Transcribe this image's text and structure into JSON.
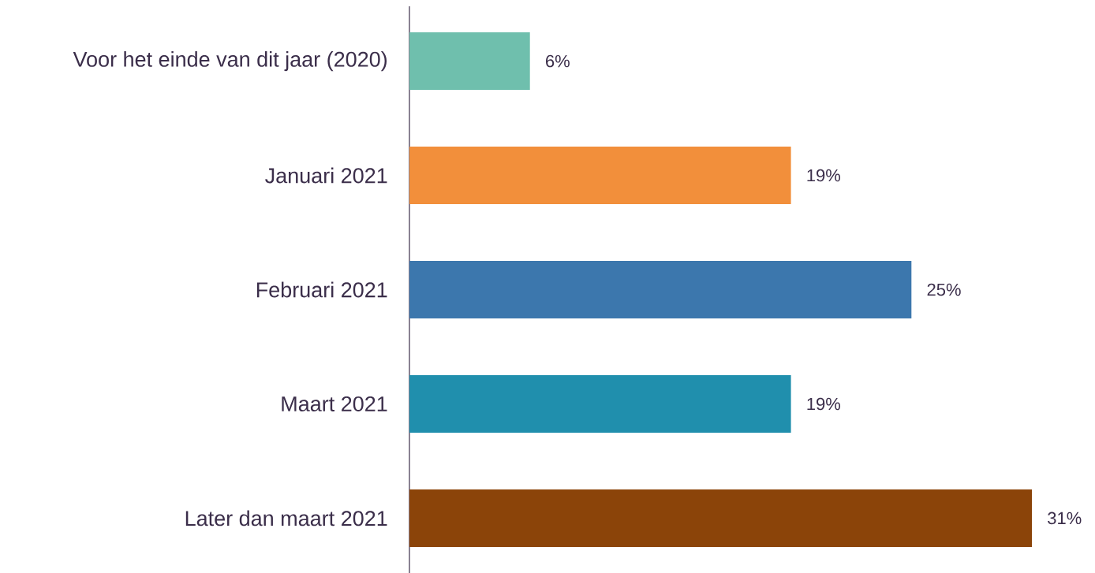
{
  "chart_data": {
    "type": "bar",
    "orientation": "horizontal",
    "categories": [
      "Voor het einde van dit jaar (2020)",
      "Januari 2021",
      "Februari 2021",
      "Maart 2021",
      "Later dan maart 2021"
    ],
    "values": [
      6,
      19,
      25,
      19,
      31
    ],
    "colors": [
      "#6fbfad",
      "#f28f3b",
      "#3c77ad",
      "#208fad",
      "#8b4409"
    ],
    "value_labels": [
      "6%",
      "19%",
      "25%",
      "19%",
      "31%"
    ]
  }
}
